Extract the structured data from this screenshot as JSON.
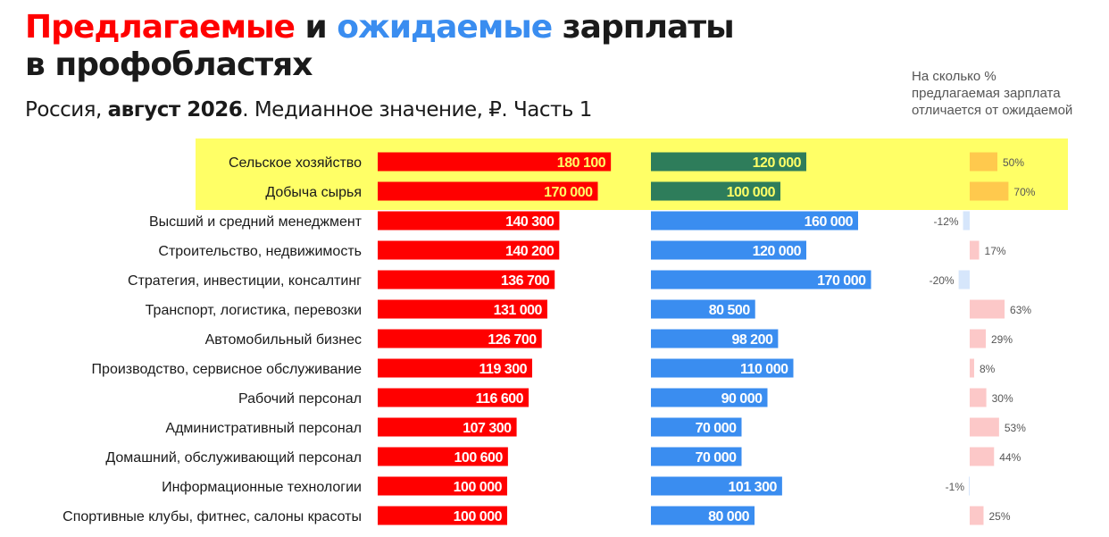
{
  "header": {
    "title_offered": "Предлагаемые",
    "title_and": " и ",
    "title_expected": "ожидаемые",
    "title_rest_line1": " зарплаты",
    "title_line2": "в профобластях",
    "subtitle_part1": "Россия, ",
    "subtitle_bold": "август 2026",
    "subtitle_part2": ". Медианное значение, ₽. Часть 1",
    "diff_note_line1": "На сколько %",
    "diff_note_line2": "предлагаемая зарплата",
    "diff_note_line3": "отличается от ожидаемой"
  },
  "colors": {
    "offered": "#ff0000",
    "expected": "#3a8df0",
    "expected_highlight": "#2e7d5b",
    "highlight_bg": "#ffff66",
    "diff_positive": "#fcc8c8",
    "diff_negative": "#d6e6fb",
    "diff_highlight": "#ffc94d"
  },
  "chart_data": {
    "type": "bar",
    "categories": [
      "Сельское хозяйство",
      "Добыча сырья",
      "Высший и средний менеджмент",
      "Строительство, недвижимость",
      "Стратегия, инвестиции, консалтинг",
      "Транспорт, логистика, перевозки",
      "Автомобильный бизнес",
      "Производство, сервисное обслуживание",
      "Рабочий персонал",
      "Административный персонал",
      "Домашний, обслуживающий персонал",
      "Информационные технологии",
      "Спортивные клубы, фитнес, салоны красоты"
    ],
    "highlighted": [
      true,
      true,
      false,
      false,
      false,
      false,
      false,
      false,
      false,
      false,
      false,
      false,
      false
    ],
    "series": [
      {
        "values": [
          180100,
          170000,
          140300,
          140200,
          136700,
          131000,
          126700,
          119300,
          116600,
          107300,
          100600,
          100000,
          100000
        ],
        "labels": [
          "180 100",
          "170 000",
          "140 300",
          "140 200",
          "136 700",
          "131 000",
          "126 700",
          "119 300",
          "116 600",
          "107 300",
          "100 600",
          "100 000",
          "100 000"
        ]
      },
      {
        "values": [
          120000,
          100000,
          160000,
          120000,
          170000,
          80500,
          98200,
          110000,
          90000,
          70000,
          70000,
          101300,
          80000
        ],
        "labels": [
          "120 000",
          "100 000",
          "160 000",
          "120 000",
          "170 000",
          "80 500",
          "98 200",
          "110 000",
          "90 000",
          "70 000",
          "70 000",
          "101 300",
          "80 000"
        ]
      },
      {
        "values": [
          50,
          70,
          -12,
          17,
          -20,
          63,
          29,
          8,
          30,
          53,
          44,
          -1,
          25
        ],
        "labels": [
          "50%",
          "70%",
          "-12%",
          "17%",
          "-20%",
          "63%",
          "29%",
          "8%",
          "30%",
          "53%",
          "44%",
          "-1%",
          "25%"
        ]
      }
    ]
  }
}
